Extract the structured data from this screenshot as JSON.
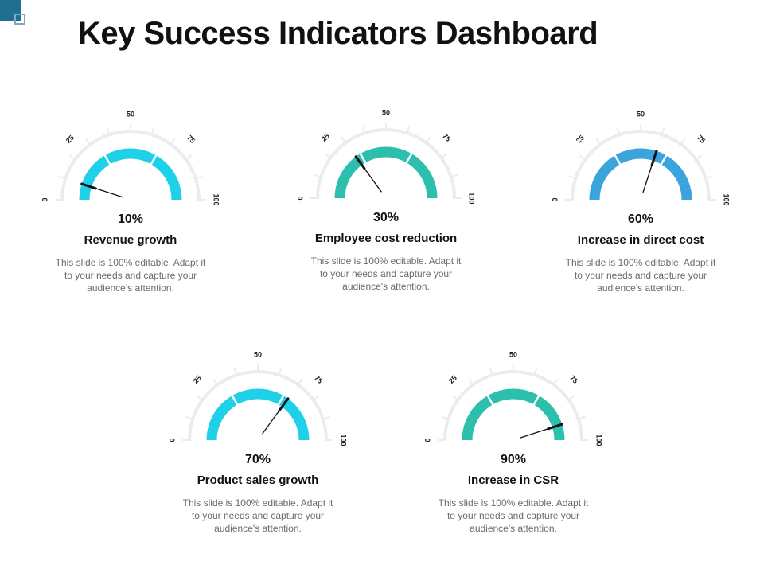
{
  "title": "Key Success Indicators Dashboard",
  "tick_labels": [
    "0",
    "25",
    "50",
    "75",
    "100"
  ],
  "kpis": [
    {
      "value_text": "10%",
      "value": 10,
      "label": "Revenue growth",
      "color": "#1fd1e8",
      "description": "This slide is 100% editable. Adapt it to your needs and capture your audience's attention."
    },
    {
      "value_text": "30%",
      "value": 30,
      "label": "Employee cost reduction",
      "color": "#2cbfae",
      "description": "This slide is 100% editable. Adapt it to your needs and capture your audience's attention."
    },
    {
      "value_text": "60%",
      "value": 60,
      "label": "Increase in direct cost",
      "color": "#3ba4dc",
      "description": "This slide is 100% editable. Adapt it to your needs and capture your audience's attention."
    },
    {
      "value_text": "70%",
      "value": 70,
      "label": "Product sales growth",
      "color": "#1fd1e8",
      "description": "This slide is 100% editable. Adapt it to your needs and capture your audience's attention."
    },
    {
      "value_text": "90%",
      "value": 90,
      "label": "Increase in CSR",
      "color": "#2cbfae",
      "description": "This slide is 100% editable. Adapt it to your needs and capture your audience's attention."
    }
  ]
}
